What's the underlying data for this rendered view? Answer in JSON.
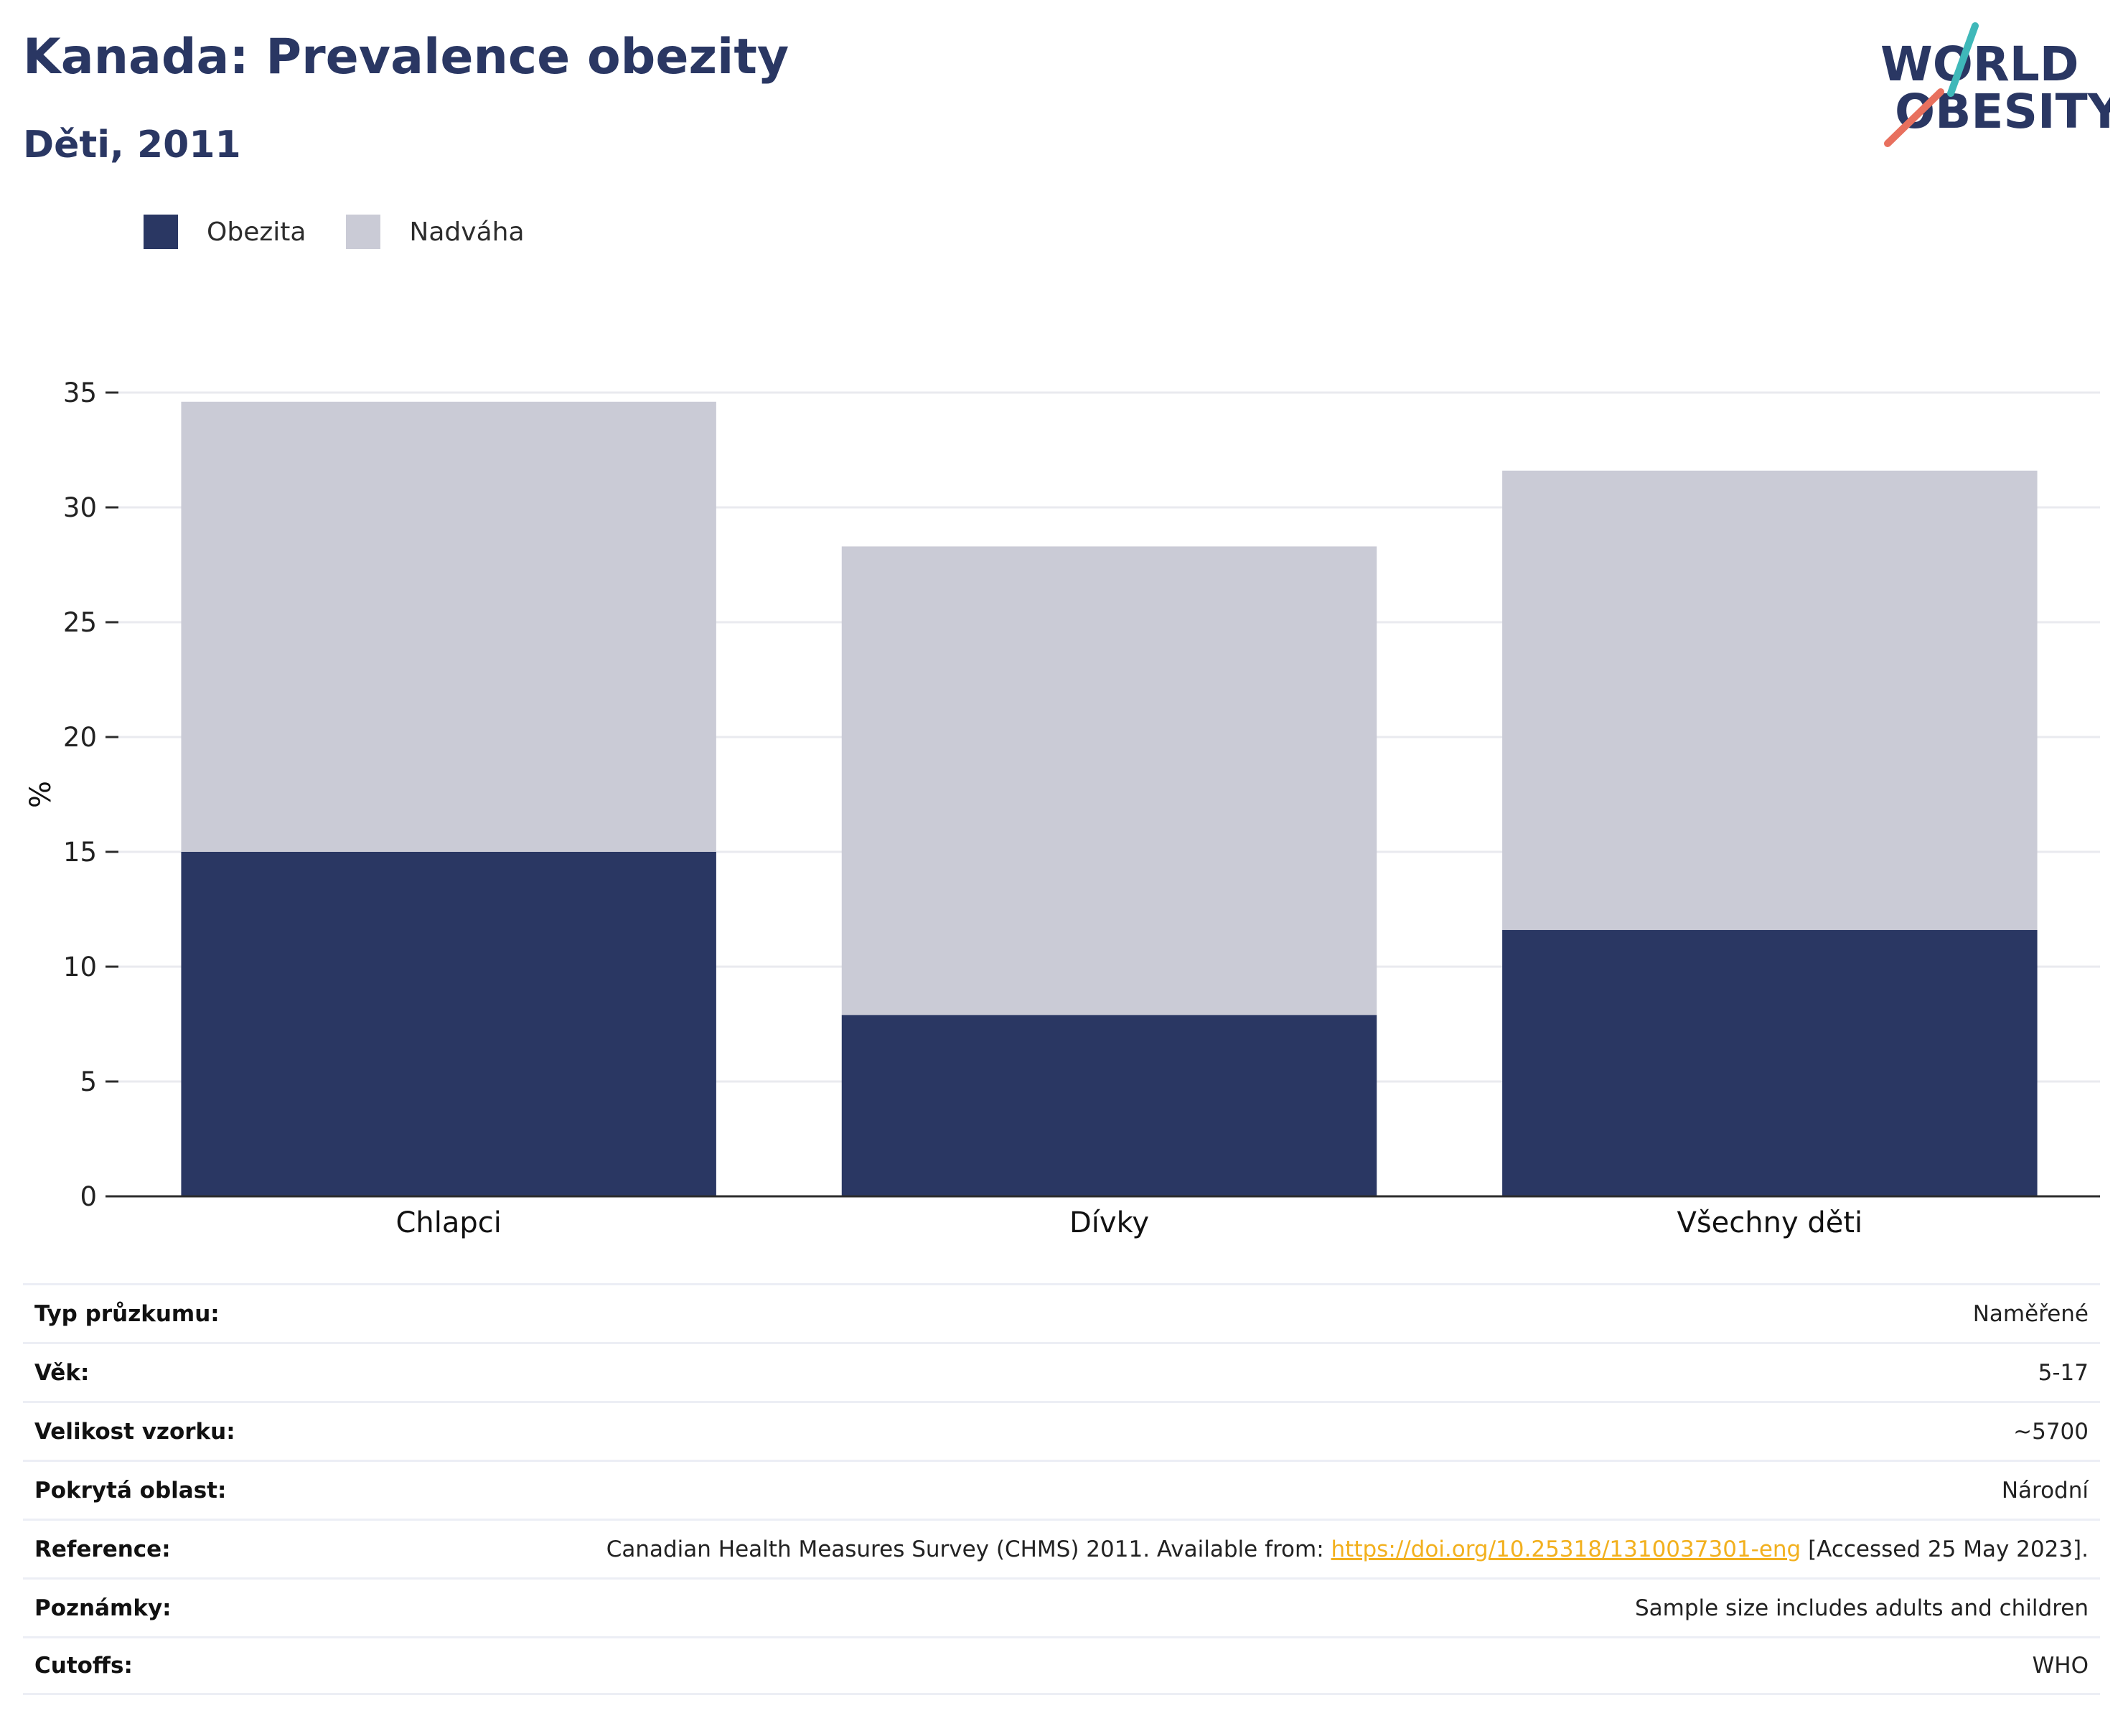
{
  "header": {
    "title": "Kanada: Prevalence obezity",
    "subtitle": "Děti, 2011",
    "logo": {
      "line1": "WORLD",
      "line2": "OBESITY"
    }
  },
  "colors": {
    "obesity": "#2a3763",
    "overweight": "#cacbd6",
    "text_dark": "#2a3763",
    "link": "#f2b01e",
    "logo_teal": "#3fb8b9",
    "logo_coral": "#e8705e"
  },
  "chart_data": {
    "type": "bar",
    "stacked": true,
    "categories": [
      "Chlapci",
      "Dívky",
      "Všechny děti"
    ],
    "series": [
      {
        "name": "Obezita",
        "values": [
          15.0,
          7.9,
          11.6
        ]
      },
      {
        "name": "Nadváha",
        "values": [
          19.6,
          20.4,
          20.0
        ]
      }
    ],
    "ylabel": "%",
    "ylim": [
      0,
      35
    ],
    "yticks": [
      0,
      5,
      10,
      15,
      20,
      25,
      30,
      35
    ],
    "grid": true,
    "legend_position": "top-left"
  },
  "info": {
    "rows": [
      {
        "label": "Typ průzkumu:",
        "value": "Naměřené"
      },
      {
        "label": "Věk:",
        "value": "5-17"
      },
      {
        "label": "Velikost vzorku:",
        "value": "~5700"
      },
      {
        "label": "Pokrytá oblast:",
        "value": "Národní"
      },
      {
        "label": "Reference:",
        "value_before": "Canadian Health Measures Survey (CHMS) 2011. Available from: ",
        "link": "https://doi.org/10.25318/1310037301-eng",
        "value_after": " [Accessed 25 May 2023]."
      },
      {
        "label": "Poznámky:",
        "value": "Sample size includes adults and children"
      },
      {
        "label": "Cutoffs:",
        "value": "WHO"
      }
    ]
  }
}
